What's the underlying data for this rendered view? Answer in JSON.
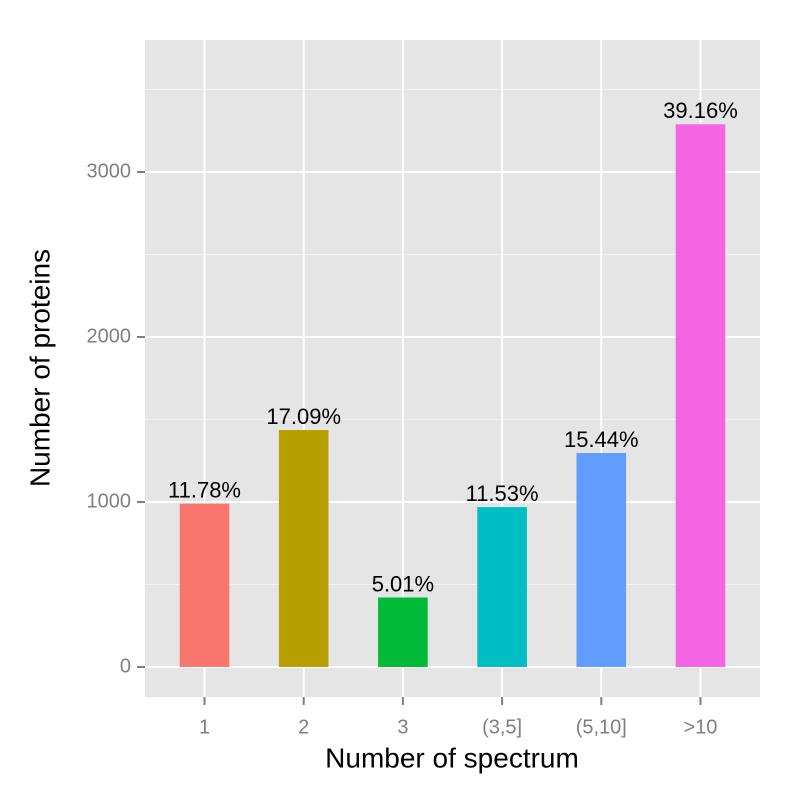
{
  "chart_data": {
    "type": "bar",
    "x_label": "Number of spectrum",
    "y_label": "Number of proteins",
    "categories": [
      "1",
      "2",
      "3",
      "(3,5]",
      "(5,10]",
      ">10"
    ],
    "values": [
      990,
      1436,
      421,
      969,
      1297,
      3289
    ],
    "percent_labels": [
      "11.78%",
      "17.09%",
      "5.01%",
      "11.53%",
      "15.44%",
      "39.16%"
    ],
    "colors": [
      "#F8766D",
      "#B79F00",
      "#00BA38",
      "#00BFC4",
      "#619CFF",
      "#F564E3"
    ],
    "ylim": [
      -182,
      3800
    ],
    "yticks": [
      0,
      1000,
      2000,
      3000
    ],
    "grid": true
  }
}
